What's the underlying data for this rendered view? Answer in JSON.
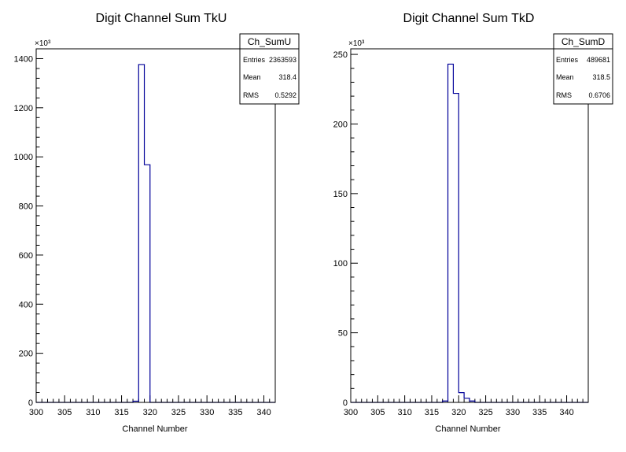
{
  "colors": {
    "hist_line": "#000099",
    "frame": "#000000",
    "background": "#ffffff"
  },
  "chart_data": [
    {
      "type": "bar",
      "title": "Digit Channel Sum TkU",
      "xlabel": "Channel Number",
      "ylabel": "",
      "y_multiplier": "×10³",
      "xlim": [
        300,
        342
      ],
      "ylim": [
        0,
        1440
      ],
      "grid": false,
      "legend": "top-right",
      "x_ticks": [
        "300",
        "305",
        "310",
        "315",
        "320",
        "325",
        "330",
        "335",
        "340"
      ],
      "y_ticks": [
        "0",
        "200",
        "400",
        "600",
        "800",
        "1000",
        "1200",
        "1400"
      ],
      "bins": [
        {
          "x": 317,
          "value": 5
        },
        {
          "x": 318,
          "value": 1376
        },
        {
          "x": 319,
          "value": 968
        }
      ],
      "stats": {
        "name": "Ch_SumU",
        "rows": [
          {
            "label": "Entries",
            "value": "2363593"
          },
          {
            "label": "Mean",
            "value": "318.4"
          },
          {
            "label": "RMS",
            "value": "0.5292"
          }
        ]
      }
    },
    {
      "type": "bar",
      "title": "Digit Channel Sum TkD",
      "xlabel": "Channel Number",
      "ylabel": "",
      "y_multiplier": "×10³",
      "xlim": [
        300,
        344
      ],
      "ylim": [
        0,
        254
      ],
      "grid": false,
      "legend": "top-right",
      "x_ticks": [
        "300",
        "305",
        "310",
        "315",
        "320",
        "325",
        "330",
        "335",
        "340"
      ],
      "y_ticks": [
        "0",
        "50",
        "100",
        "150",
        "200",
        "250"
      ],
      "bins": [
        {
          "x": 317,
          "value": 1
        },
        {
          "x": 318,
          "value": 243
        },
        {
          "x": 319,
          "value": 222
        },
        {
          "x": 320,
          "value": 7
        },
        {
          "x": 321,
          "value": 3
        },
        {
          "x": 322,
          "value": 1
        }
      ],
      "stats": {
        "name": "Ch_SumD",
        "rows": [
          {
            "label": "Entries",
            "value": "489681"
          },
          {
            "label": "Mean",
            "value": "318.5"
          },
          {
            "label": "RMS",
            "value": "0.6706"
          }
        ]
      }
    }
  ]
}
